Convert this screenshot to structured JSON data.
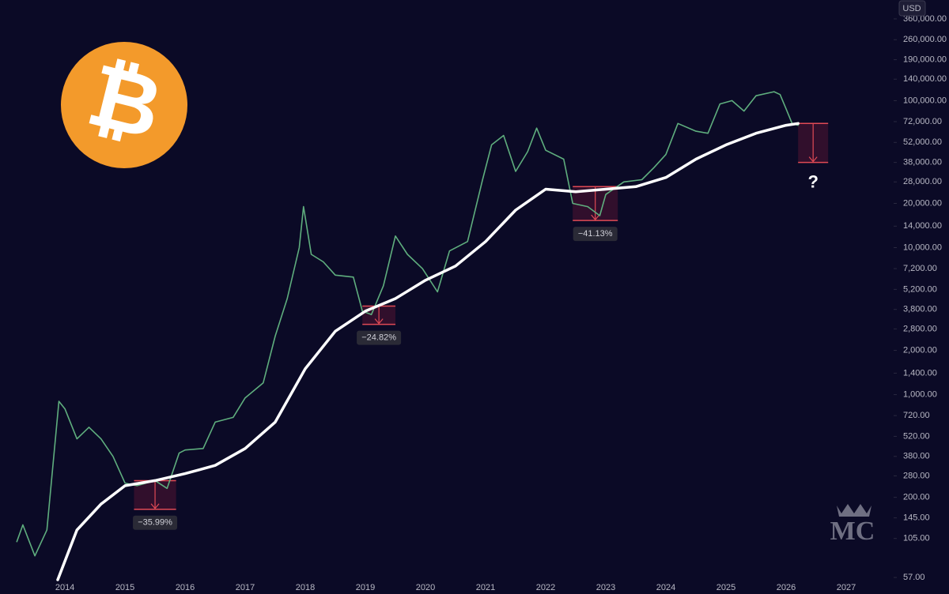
{
  "chart_data": {
    "type": "line",
    "currency": "USD",
    "logo_symbol": "₿",
    "watermark": "MC",
    "log_scale": true,
    "xlim": [
      2012.92,
      2027.79
    ],
    "ylim": [
      44,
      484000
    ],
    "xticks": [
      2014,
      2015,
      2016,
      2017,
      2018,
      2019,
      2020,
      2021,
      2022,
      2023,
      2024,
      2025,
      2026,
      2027
    ],
    "yticks": [
      {
        "value": 57,
        "label": "57.00"
      },
      {
        "value": 105,
        "label": "105.00"
      },
      {
        "value": 145,
        "label": "145.00"
      },
      {
        "value": 200,
        "label": "200.00"
      },
      {
        "value": 280,
        "label": "280.00"
      },
      {
        "value": 380,
        "label": "380.00"
      },
      {
        "value": 520,
        "label": "520.00"
      },
      {
        "value": 720,
        "label": "720.00"
      },
      {
        "value": 1000,
        "label": "1,000.00"
      },
      {
        "value": 1400,
        "label": "1,400.00"
      },
      {
        "value": 2000,
        "label": "2,000.00"
      },
      {
        "value": 2800,
        "label": "2,800.00"
      },
      {
        "value": 3800,
        "label": "3,800.00"
      },
      {
        "value": 5200,
        "label": "5,200.00"
      },
      {
        "value": 7200,
        "label": "7,200.00"
      },
      {
        "value": 10000,
        "label": "10,000.00"
      },
      {
        "value": 14000,
        "label": "14,000.00"
      },
      {
        "value": 20000,
        "label": "20,000.00"
      },
      {
        "value": 28000,
        "label": "28,000.00"
      },
      {
        "value": 38000,
        "label": "38,000.00"
      },
      {
        "value": 52000,
        "label": "52,000.00"
      },
      {
        "value": 72000,
        "label": "72,000.00"
      },
      {
        "value": 100000,
        "label": "100,000.00"
      },
      {
        "value": 140000,
        "label": "140,000.00"
      },
      {
        "value": 190000,
        "label": "190,000.00"
      },
      {
        "value": 260000,
        "label": "260,000.00"
      },
      {
        "value": 360000,
        "label": "360,000.00"
      }
    ],
    "series": [
      {
        "color": "#5fae7e",
        "x": [
          2013.2,
          2013.3,
          2013.5,
          2013.7,
          2013.9,
          2014.0,
          2014.2,
          2014.4,
          2014.6,
          2014.8,
          2015.0,
          2015.2,
          2015.5,
          2015.7,
          2015.9,
          2016.0,
          2016.3,
          2016.5,
          2016.8,
          2017.0,
          2017.3,
          2017.5,
          2017.7,
          2017.9,
          2017.97,
          2018.1,
          2018.3,
          2018.5,
          2018.8,
          2018.95,
          2019.1,
          2019.3,
          2019.5,
          2019.7,
          2019.95,
          2020.2,
          2020.4,
          2020.7,
          2020.95,
          2021.1,
          2021.3,
          2021.5,
          2021.7,
          2021.85,
          2022.0,
          2022.3,
          2022.45,
          2022.7,
          2022.9,
          2023.0,
          2023.3,
          2023.6,
          2023.8,
          2024.0,
          2024.2,
          2024.5,
          2024.7,
          2024.9,
          2025.1,
          2025.3,
          2025.5,
          2025.8,
          2025.9,
          2026.0,
          2026.1,
          2026.2
        ],
        "values": [
          100,
          130,
          80,
          120,
          900,
          800,
          500,
          600,
          500,
          380,
          250,
          240,
          260,
          230,
          400,
          420,
          430,
          650,
          700,
          950,
          1200,
          2500,
          4500,
          10000,
          19000,
          9000,
          8000,
          6500,
          6300,
          3700,
          3500,
          5500,
          12000,
          9000,
          7200,
          5000,
          9500,
          11000,
          29000,
          50000,
          58000,
          33000,
          45000,
          65000,
          46000,
          40000,
          20000,
          19000,
          16500,
          23000,
          28000,
          29000,
          35000,
          43000,
          70000,
          62000,
          60000,
          95000,
          100000,
          85000,
          108000,
          115000,
          110000,
          88000,
          70000,
          68000
        ]
      },
      {
        "color": "#ffffff",
        "x": [
          2013.88,
          2014.2,
          2014.6,
          2015.0,
          2015.5,
          2016.0,
          2016.5,
          2017.0,
          2017.5,
          2018.0,
          2018.5,
          2019.0,
          2019.5,
          2020.0,
          2020.5,
          2021.0,
          2021.5,
          2022.0,
          2022.5,
          2023.0,
          2023.5,
          2024.0,
          2024.5,
          2025.0,
          2025.5,
          2026.0,
          2026.2
        ],
        "values": [
          55,
          120,
          180,
          240,
          260,
          290,
          330,
          430,
          650,
          1500,
          2700,
          3700,
          4500,
          6000,
          7500,
          11000,
          18000,
          25000,
          24000,
          25000,
          26000,
          30000,
          40000,
          50000,
          60000,
          68000,
          70000
        ]
      }
    ],
    "drawdowns": [
      {
        "x": [
          2015.15,
          2015.85
        ],
        "top": 260,
        "bottom": 166,
        "label": "−35.99%"
      },
      {
        "x": [
          2018.95,
          2019.5
        ],
        "top": 4000,
        "bottom": 3007,
        "label": "−24.82%"
      },
      {
        "x": [
          2022.45,
          2023.2
        ],
        "top": 26000,
        "bottom": 15300,
        "label": "−41.13%"
      },
      {
        "x": [
          2026.2,
          2026.7
        ],
        "top": 70000,
        "bottom": 38000,
        "label": "?"
      }
    ]
  }
}
